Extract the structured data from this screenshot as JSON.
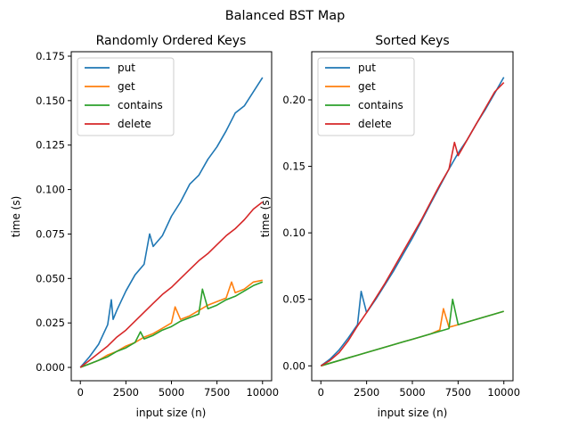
{
  "figure": {
    "suptitle": "Balanced BST Map"
  },
  "colors": {
    "put": "#1f77b4",
    "get": "#ff7f0e",
    "contains": "#2ca02c",
    "delete": "#d62728"
  },
  "chart_data": [
    {
      "type": "line",
      "title": "Randomly Ordered Keys",
      "xlabel": "input size (n)",
      "ylabel": "time (s)",
      "xlim": [
        -500,
        10500
      ],
      "ylim": [
        -0.0075,
        0.1775
      ],
      "xticks": [
        0,
        2500,
        5000,
        7500,
        10000
      ],
      "xtick_labels": [
        "0",
        "2500",
        "5000",
        "7500",
        "10000"
      ],
      "yticks": [
        0,
        0.025,
        0.05,
        0.075,
        0.1,
        0.125,
        0.15,
        0.175
      ],
      "ytick_labels": [
        "0.000",
        "0.025",
        "0.050",
        "0.075",
        "0.100",
        "0.125",
        "0.150",
        "0.175"
      ],
      "legend": "upper-left",
      "grid": false,
      "series": [
        {
          "name": "put",
          "x": [
            0,
            500,
            1000,
            1500,
            1700,
            1800,
            2000,
            2500,
            3000,
            3500,
            3800,
            4000,
            4500,
            5000,
            5500,
            6000,
            6500,
            7000,
            7500,
            8000,
            8500,
            9000,
            9500,
            10000
          ],
          "y": [
            0.0,
            0.006,
            0.013,
            0.024,
            0.038,
            0.027,
            0.032,
            0.043,
            0.052,
            0.058,
            0.075,
            0.068,
            0.074,
            0.085,
            0.093,
            0.103,
            0.108,
            0.117,
            0.124,
            0.133,
            0.143,
            0.147,
            0.155,
            0.163
          ]
        },
        {
          "name": "get",
          "x": [
            0,
            500,
            1000,
            1500,
            2000,
            2500,
            3000,
            3500,
            4000,
            4500,
            5000,
            5200,
            5500,
            6000,
            6500,
            7000,
            7500,
            8000,
            8300,
            8500,
            9000,
            9500,
            10000
          ],
          "y": [
            0.0,
            0.002,
            0.004,
            0.007,
            0.009,
            0.012,
            0.014,
            0.017,
            0.019,
            0.022,
            0.025,
            0.034,
            0.027,
            0.029,
            0.032,
            0.035,
            0.037,
            0.039,
            0.048,
            0.042,
            0.044,
            0.048,
            0.049
          ]
        },
        {
          "name": "contains",
          "x": [
            0,
            500,
            1000,
            1500,
            2000,
            2500,
            3000,
            3300,
            3500,
            4000,
            4500,
            5000,
            5500,
            6000,
            6500,
            6700,
            7000,
            7500,
            8000,
            8500,
            9000,
            9500,
            10000
          ],
          "y": [
            0.0,
            0.002,
            0.004,
            0.006,
            0.009,
            0.011,
            0.014,
            0.02,
            0.016,
            0.018,
            0.021,
            0.023,
            0.026,
            0.028,
            0.03,
            0.044,
            0.033,
            0.035,
            0.038,
            0.04,
            0.043,
            0.046,
            0.048
          ]
        },
        {
          "name": "delete",
          "x": [
            0,
            500,
            1000,
            1500,
            2000,
            2500,
            3000,
            3500,
            4000,
            4500,
            5000,
            5500,
            6000,
            6500,
            7000,
            7500,
            8000,
            8500,
            9000,
            9500,
            10000
          ],
          "y": [
            0.0,
            0.004,
            0.008,
            0.012,
            0.017,
            0.021,
            0.026,
            0.031,
            0.036,
            0.041,
            0.045,
            0.05,
            0.055,
            0.06,
            0.064,
            0.069,
            0.074,
            0.078,
            0.083,
            0.089,
            0.093
          ]
        }
      ]
    },
    {
      "type": "line",
      "title": "Sorted Keys",
      "xlabel": "input size (n)",
      "ylabel": "time (s)",
      "xlim": [
        -500,
        10500
      ],
      "ylim": [
        -0.0112,
        0.2362
      ],
      "xticks": [
        0,
        2500,
        5000,
        7500,
        10000
      ],
      "xtick_labels": [
        "0",
        "2500",
        "5000",
        "7500",
        "10000"
      ],
      "yticks": [
        0,
        0.05,
        0.1,
        0.15,
        0.2
      ],
      "ytick_labels": [
        "0.00",
        "0.05",
        "0.10",
        "0.15",
        "0.20"
      ],
      "legend": "upper-left",
      "grid": false,
      "series": [
        {
          "name": "put",
          "x": [
            0,
            500,
            1000,
            1500,
            2000,
            2200,
            2500,
            3000,
            3500,
            4000,
            4500,
            5000,
            5500,
            6000,
            6500,
            7000,
            7500,
            8000,
            8500,
            9000,
            9500,
            10000
          ],
          "y": [
            0.0,
            0.005,
            0.012,
            0.021,
            0.031,
            0.056,
            0.04,
            0.05,
            0.061,
            0.072,
            0.084,
            0.096,
            0.109,
            0.122,
            0.135,
            0.148,
            0.16,
            0.17,
            0.182,
            0.193,
            0.205,
            0.217
          ]
        },
        {
          "name": "get",
          "x": [
            0,
            500,
            1000,
            1500,
            2000,
            2500,
            3000,
            3500,
            4000,
            4500,
            5000,
            5500,
            6000,
            6500,
            6700,
            7000,
            7500,
            8000,
            8500,
            9000,
            9500,
            10000
          ],
          "y": [
            0.0,
            0.002,
            0.004,
            0.006,
            0.008,
            0.01,
            0.012,
            0.014,
            0.016,
            0.018,
            0.02,
            0.022,
            0.024,
            0.027,
            0.043,
            0.029,
            0.031,
            0.033,
            0.035,
            0.037,
            0.039,
            0.041
          ]
        },
        {
          "name": "contains",
          "x": [
            0,
            500,
            1000,
            1500,
            2000,
            2500,
            3000,
            3500,
            4000,
            4500,
            5000,
            5500,
            6000,
            6500,
            7000,
            7200,
            7500,
            8000,
            8500,
            9000,
            9500,
            10000
          ],
          "y": [
            0.0,
            0.002,
            0.004,
            0.006,
            0.008,
            0.01,
            0.012,
            0.014,
            0.016,
            0.018,
            0.02,
            0.022,
            0.024,
            0.026,
            0.028,
            0.05,
            0.031,
            0.033,
            0.035,
            0.037,
            0.039,
            0.041
          ]
        },
        {
          "name": "delete",
          "x": [
            0,
            500,
            1000,
            1500,
            2000,
            2500,
            3000,
            3500,
            4000,
            4500,
            5000,
            5500,
            6000,
            6500,
            7000,
            7300,
            7500,
            8000,
            8500,
            9000,
            9500,
            10000
          ],
          "y": [
            0.0,
            0.004,
            0.01,
            0.019,
            0.03,
            0.04,
            0.051,
            0.062,
            0.074,
            0.086,
            0.098,
            0.11,
            0.123,
            0.136,
            0.148,
            0.168,
            0.158,
            0.17,
            0.182,
            0.194,
            0.206,
            0.213
          ]
        }
      ]
    }
  ]
}
